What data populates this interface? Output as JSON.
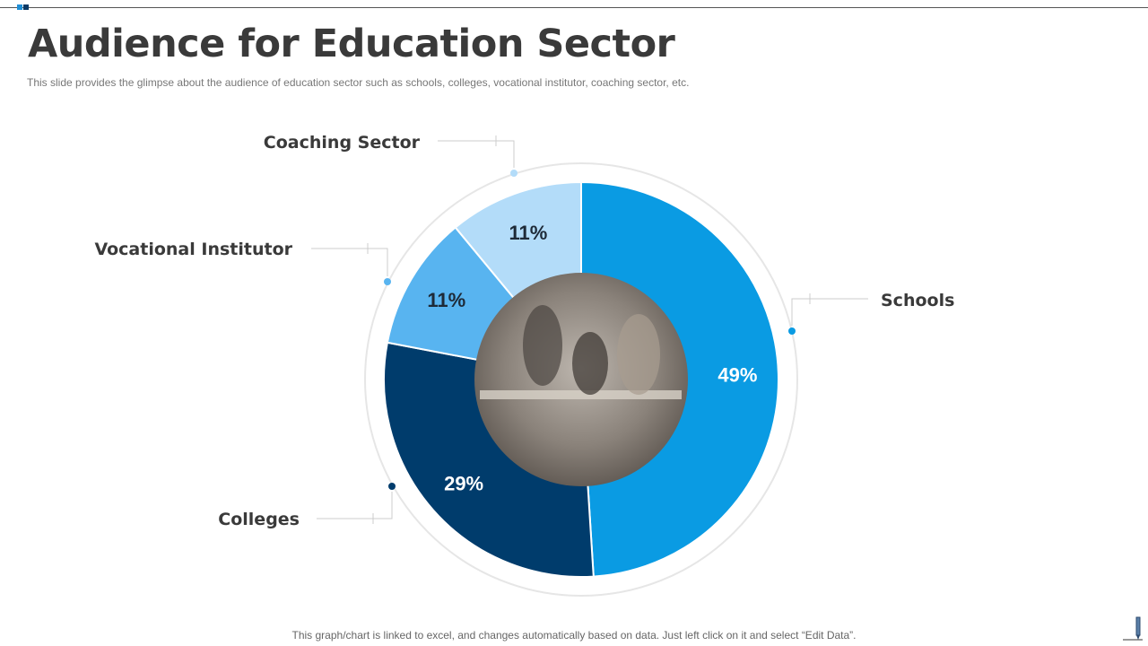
{
  "title": "Audience for Education Sector",
  "subtitle": "This slide provides the glimpse about the audience of education sector such as schools, colleges, vocational institutor, coaching sector, etc.",
  "footer": "This graph/chart is linked to excel,  and changes automatically based on data. Just left click on it and select “Edit Data”.",
  "chart_data": {
    "type": "pie",
    "variant": "donut",
    "categories": [
      "Schools",
      "Colleges",
      "Vocational Institutor",
      "Coaching Sector"
    ],
    "values": [
      49,
      29,
      11,
      11
    ],
    "data_labels": [
      "49%",
      "29%",
      "11%",
      "11%"
    ],
    "colors": [
      "#0a9be3",
      "#003c6c",
      "#58b4f0",
      "#b3dcf9"
    ],
    "label_colors": [
      "#ffffff",
      "#ffffff",
      "#1e2a38",
      "#1e2a38"
    ],
    "center": "photo of students working at a table"
  },
  "icons": {
    "pencil": "pencil-icon"
  }
}
